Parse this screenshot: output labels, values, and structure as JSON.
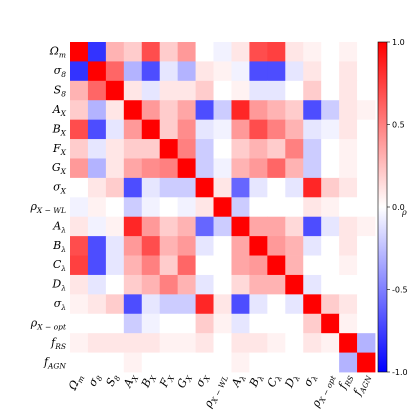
{
  "chart_data": {
    "type": "heatmap",
    "title": "",
    "labels_html": [
      "Ω<sub>m</sub>",
      "σ<sub>8</sub>",
      "S<sub>8</sub>",
      "A<sub>X</sub>",
      "B<sub>X</sub>",
      "F<sub>X</sub>",
      "G<sub>X</sub>",
      "σ<sub>X</sub>",
      "ρ<sub>X − WL</sub>",
      "A<sub>λ</sub>",
      "B<sub>λ</sub>",
      "C<sub>λ</sub>",
      "D<sub>λ</sub>",
      "σ<sub>λ</sub>",
      "ρ<sub>X − opt</sub>",
      "f<sub>RS</sub>",
      "f<sub>AGN</sub>"
    ],
    "labels": [
      [
        "Ω",
        "m"
      ],
      [
        "σ",
        "8"
      ],
      [
        "S",
        "8"
      ],
      [
        "A",
        "X"
      ],
      [
        "B",
        "X"
      ],
      [
        "F",
        "X"
      ],
      [
        "G",
        "X"
      ],
      [
        "σ",
        "X"
      ],
      [
        "ρ",
        "X − WL"
      ],
      [
        "A",
        "λ"
      ],
      [
        "B",
        "λ"
      ],
      [
        "C",
        "λ"
      ],
      [
        "D",
        "λ"
      ],
      [
        "σ",
        "λ"
      ],
      [
        "ρ",
        "X − opt"
      ],
      [
        "f",
        "RS"
      ],
      [
        "f",
        "AGN"
      ]
    ],
    "colorbar": {
      "label": "ρ",
      "min": -1.0,
      "max": 1.0,
      "ticks": [
        "1.0",
        "0.5",
        "0.0",
        "-0.5",
        "-1.0"
      ],
      "tick_values": [
        1.0,
        0.5,
        0.0,
        -0.5,
        -1.0
      ]
    },
    "cmap": {
      "negative": "#0000ff",
      "zero": "#ffffff",
      "positive": "#ff0000"
    },
    "matrix": [
      [
        1.0,
        -0.8,
        0.3,
        0.2,
        0.7,
        0.2,
        0.4,
        0.0,
        -0.05,
        0.1,
        0.7,
        0.75,
        0.1,
        0.05,
        0.0,
        0.05,
        0.0
      ],
      [
        -0.8,
        1.0,
        0.6,
        -0.3,
        -0.7,
        -0.1,
        -0.3,
        0.1,
        0.05,
        -0.05,
        -0.7,
        -0.7,
        -0.1,
        0.1,
        0.0,
        0.1,
        0.0
      ],
      [
        0.3,
        0.6,
        1.0,
        0.1,
        -0.1,
        0.1,
        0.1,
        0.2,
        0.0,
        0.05,
        -0.1,
        -0.1,
        0.0,
        0.2,
        0.0,
        0.1,
        0.0
      ],
      [
        0.2,
        -0.3,
        0.1,
        1.0,
        0.4,
        0.2,
        0.35,
        -0.7,
        -0.2,
        0.85,
        0.4,
        0.3,
        0.2,
        -0.7,
        -0.2,
        0.1,
        0.05
      ],
      [
        0.7,
        -0.7,
        -0.1,
        0.4,
        1.0,
        0.2,
        0.45,
        -0.1,
        -0.05,
        0.4,
        0.7,
        0.5,
        0.3,
        -0.1,
        -0.05,
        0.1,
        0.0
      ],
      [
        0.2,
        -0.1,
        0.1,
        0.2,
        0.2,
        1.0,
        0.5,
        -0.2,
        0.0,
        0.2,
        0.3,
        0.2,
        0.5,
        -0.2,
        0.0,
        0.05,
        0.0
      ],
      [
        0.4,
        -0.3,
        0.1,
        0.35,
        0.45,
        0.5,
        1.0,
        -0.2,
        -0.05,
        0.3,
        0.4,
        0.6,
        0.3,
        -0.2,
        0.0,
        0.05,
        0.0
      ],
      [
        0.0,
        0.1,
        0.2,
        -0.7,
        -0.1,
        -0.2,
        -0.2,
        1.0,
        0.1,
        -0.6,
        -0.1,
        0.0,
        -0.1,
        0.85,
        0.2,
        0.1,
        0.0
      ],
      [
        -0.05,
        0.05,
        0.0,
        -0.2,
        -0.05,
        0.0,
        -0.05,
        0.1,
        1.0,
        -0.2,
        0.0,
        0.0,
        0.0,
        0.1,
        0.05,
        0.0,
        0.0
      ],
      [
        0.1,
        -0.05,
        0.05,
        0.85,
        0.4,
        0.2,
        0.3,
        -0.6,
        -0.2,
        1.0,
        0.35,
        0.35,
        0.15,
        -0.7,
        -0.1,
        0.1,
        0.05
      ],
      [
        0.7,
        -0.7,
        -0.1,
        0.4,
        0.7,
        0.3,
        0.4,
        -0.1,
        0.0,
        0.35,
        1.0,
        0.4,
        0.3,
        -0.1,
        0.0,
        0.1,
        0.0
      ],
      [
        0.75,
        -0.7,
        -0.1,
        0.3,
        0.5,
        0.2,
        0.6,
        0.0,
        0.0,
        0.35,
        0.4,
        1.0,
        0.3,
        0.0,
        0.0,
        0.05,
        0.0
      ],
      [
        0.1,
        -0.1,
        0.0,
        0.2,
        0.3,
        0.5,
        0.3,
        -0.1,
        0.0,
        0.15,
        0.3,
        0.3,
        1.0,
        -0.1,
        0.0,
        0.0,
        0.0
      ],
      [
        0.05,
        0.1,
        0.2,
        -0.7,
        -0.1,
        -0.2,
        -0.2,
        0.85,
        0.1,
        -0.7,
        -0.1,
        0.0,
        -0.1,
        1.0,
        0.2,
        0.1,
        0.0
      ],
      [
        0.0,
        0.0,
        0.0,
        -0.2,
        -0.05,
        0.0,
        0.0,
        0.2,
        0.05,
        -0.1,
        0.0,
        0.0,
        0.0,
        0.2,
        1.0,
        0.05,
        0.0
      ],
      [
        0.05,
        0.1,
        0.1,
        0.1,
        0.1,
        0.05,
        0.05,
        0.1,
        0.0,
        0.1,
        0.1,
        0.05,
        0.0,
        0.1,
        0.05,
        1.0,
        -0.3
      ],
      [
        0.0,
        0.0,
        0.0,
        0.05,
        0.0,
        0.0,
        0.0,
        0.0,
        0.0,
        0.05,
        0.0,
        0.0,
        0.0,
        0.0,
        0.0,
        -0.3,
        1.0
      ]
    ]
  }
}
